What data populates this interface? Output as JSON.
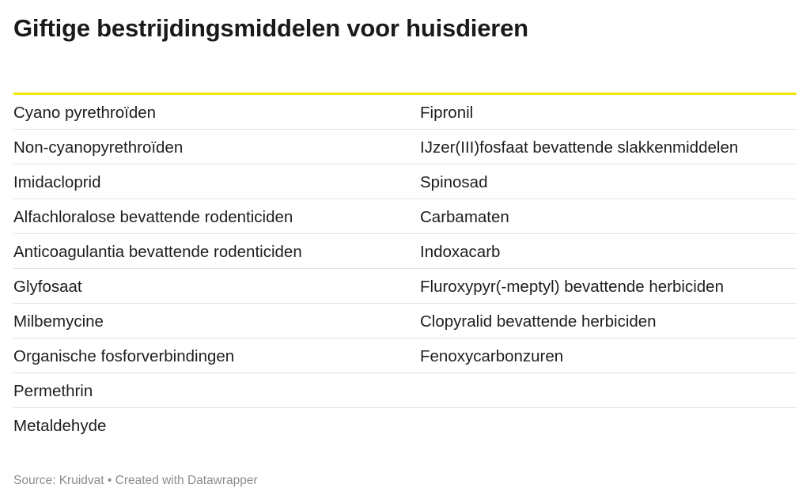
{
  "title": "Giftige bestrijdingsmiddelen voor huisdieren",
  "table": {
    "rows": [
      [
        "Cyano pyrethroïden",
        "Fipronil"
      ],
      [
        "Non-cyanopyrethroïden",
        "IJzer(III)fosfaat bevattende slakkenmiddelen"
      ],
      [
        "Imidacloprid",
        "Spinosad"
      ],
      [
        "Alfachloralose bevattende rodenticiden",
        "Carbamaten"
      ],
      [
        "Anticoagulantia bevattende rodenticiden",
        "Indoxacarb"
      ],
      [
        "Glyfosaat",
        "Fluroxypyr(-meptyl) bevattende herbiciden"
      ],
      [
        "Milbemycine",
        "Clopyralid bevattende herbiciden"
      ],
      [
        "Organische fosforverbindingen",
        "Fenoxycarbonzuren"
      ],
      [
        "Permethrin",
        ""
      ],
      [
        "Metaldehyde",
        ""
      ]
    ]
  },
  "footer": "Source: Kruidvat • Created with Datawrapper",
  "colors": {
    "accent_rule": "#f5e400",
    "row_divider": "#e2e2e2",
    "footer_text": "#8c8c8c"
  }
}
